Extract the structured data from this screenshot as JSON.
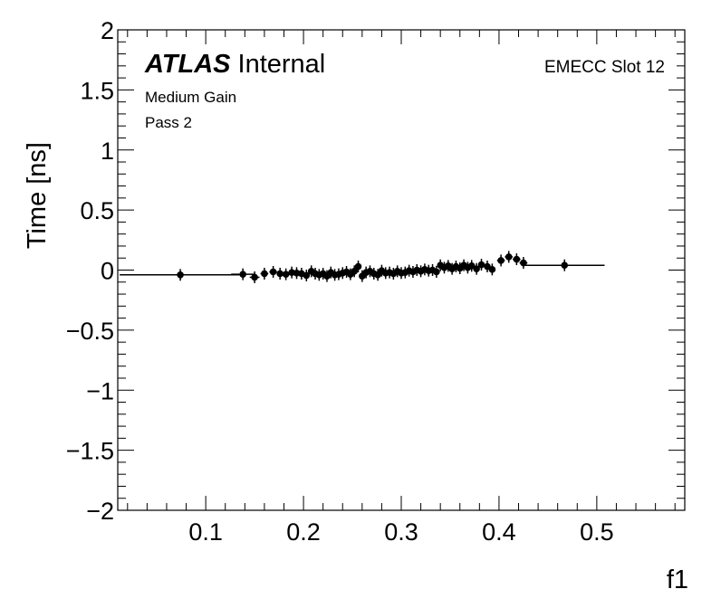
{
  "labels": {
    "atlas": "ATLAS",
    "internal": "Internal",
    "gain": "Medium Gain",
    "pass": "Pass 2",
    "slot": "EMECC Slot 12"
  },
  "chart_data": {
    "type": "scatter",
    "title": "",
    "xlabel": "f1",
    "ylabel": "Time [ns]",
    "xlim": [
      0.01,
      0.59
    ],
    "ylim": [
      -2,
      2
    ],
    "grid": false,
    "x_ticks": [
      0.1,
      0.2,
      0.3,
      0.4,
      0.5
    ],
    "x_tick_labels": [
      "0.1",
      "0.2",
      "0.3",
      "0.4",
      "0.5"
    ],
    "y_ticks": [
      -2,
      -1.5,
      -1,
      -0.5,
      0,
      0.5,
      1,
      1.5,
      2
    ],
    "y_tick_labels": [
      "−2",
      "−1.5",
      "−1",
      "−0.5",
      "0",
      "0.5",
      "1",
      "1.5",
      "2"
    ],
    "series": [
      {
        "points": [
          {
            "x": 0.074,
            "y": -0.04,
            "xerr": 0.062,
            "yerr": 0.0
          },
          {
            "x": 0.138,
            "y": -0.035,
            "xerr": 0.012,
            "yerr": 0.0
          },
          {
            "x": 0.15,
            "y": -0.06,
            "xerr": 0.005,
            "yerr": 0.02
          },
          {
            "x": 0.16,
            "y": -0.03,
            "xerr": 0.004,
            "yerr": 0.02
          },
          {
            "x": 0.169,
            "y": -0.015,
            "xerr": 0.004,
            "yerr": 0.02
          },
          {
            "x": 0.176,
            "y": -0.03,
            "xerr": 0.003,
            "yerr": 0.02
          },
          {
            "x": 0.182,
            "y": -0.035,
            "xerr": 0.003,
            "yerr": 0.02
          },
          {
            "x": 0.188,
            "y": -0.02,
            "xerr": 0.003,
            "yerr": 0.02
          },
          {
            "x": 0.193,
            "y": -0.025,
            "xerr": 0.002,
            "yerr": 0.02
          },
          {
            "x": 0.198,
            "y": -0.03,
            "xerr": 0.002,
            "yerr": 0.02
          },
          {
            "x": 0.203,
            "y": -0.045,
            "xerr": 0.002,
            "yerr": 0.02
          },
          {
            "x": 0.208,
            "y": -0.01,
            "xerr": 0.002,
            "yerr": 0.02
          },
          {
            "x": 0.212,
            "y": -0.03,
            "xerr": 0.002,
            "yerr": 0.02
          },
          {
            "x": 0.216,
            "y": -0.04,
            "xerr": 0.002,
            "yerr": 0.02
          },
          {
            "x": 0.22,
            "y": -0.03,
            "xerr": 0.002,
            "yerr": 0.02
          },
          {
            "x": 0.224,
            "y": -0.05,
            "xerr": 0.002,
            "yerr": 0.02
          },
          {
            "x": 0.228,
            "y": -0.02,
            "xerr": 0.002,
            "yerr": 0.02
          },
          {
            "x": 0.232,
            "y": -0.04,
            "xerr": 0.002,
            "yerr": 0.02
          },
          {
            "x": 0.236,
            "y": -0.035,
            "xerr": 0.002,
            "yerr": 0.02
          },
          {
            "x": 0.24,
            "y": -0.025,
            "xerr": 0.002,
            "yerr": 0.02
          },
          {
            "x": 0.244,
            "y": -0.015,
            "xerr": 0.002,
            "yerr": 0.02
          },
          {
            "x": 0.248,
            "y": -0.035,
            "xerr": 0.002,
            "yerr": 0.02
          },
          {
            "x": 0.252,
            "y": -0.01,
            "xerr": 0.002,
            "yerr": 0.02
          },
          {
            "x": 0.256,
            "y": 0.03,
            "xerr": 0.002,
            "yerr": 0.02
          },
          {
            "x": 0.26,
            "y": -0.05,
            "xerr": 0.002,
            "yerr": 0.02
          },
          {
            "x": 0.264,
            "y": -0.02,
            "xerr": 0.002,
            "yerr": 0.02
          },
          {
            "x": 0.268,
            "y": -0.01,
            "xerr": 0.002,
            "yerr": 0.02
          },
          {
            "x": 0.272,
            "y": -0.03,
            "xerr": 0.002,
            "yerr": 0.02
          },
          {
            "x": 0.276,
            "y": -0.04,
            "xerr": 0.002,
            "yerr": 0.02
          },
          {
            "x": 0.28,
            "y": -0.005,
            "xerr": 0.002,
            "yerr": 0.02
          },
          {
            "x": 0.284,
            "y": -0.025,
            "xerr": 0.002,
            "yerr": 0.02
          },
          {
            "x": 0.288,
            "y": -0.02,
            "xerr": 0.002,
            "yerr": 0.02
          },
          {
            "x": 0.292,
            "y": -0.03,
            "xerr": 0.002,
            "yerr": 0.02
          },
          {
            "x": 0.296,
            "y": -0.01,
            "xerr": 0.002,
            "yerr": 0.02
          },
          {
            "x": 0.3,
            "y": -0.025,
            "xerr": 0.002,
            "yerr": 0.02
          },
          {
            "x": 0.304,
            "y": -0.02,
            "xerr": 0.002,
            "yerr": 0.02
          },
          {
            "x": 0.308,
            "y": -0.005,
            "xerr": 0.002,
            "yerr": 0.02
          },
          {
            "x": 0.312,
            "y": -0.015,
            "xerr": 0.002,
            "yerr": 0.02
          },
          {
            "x": 0.316,
            "y": 0.0,
            "xerr": 0.002,
            "yerr": 0.02
          },
          {
            "x": 0.32,
            "y": -0.01,
            "xerr": 0.002,
            "yerr": 0.02
          },
          {
            "x": 0.324,
            "y": 0.005,
            "xerr": 0.002,
            "yerr": 0.02
          },
          {
            "x": 0.328,
            "y": -0.005,
            "xerr": 0.002,
            "yerr": 0.02
          },
          {
            "x": 0.332,
            "y": 0.0,
            "xerr": 0.002,
            "yerr": 0.02
          },
          {
            "x": 0.336,
            "y": -0.015,
            "xerr": 0.002,
            "yerr": 0.02
          },
          {
            "x": 0.34,
            "y": 0.04,
            "xerr": 0.002,
            "yerr": 0.02
          },
          {
            "x": 0.344,
            "y": 0.02,
            "xerr": 0.002,
            "yerr": 0.02
          },
          {
            "x": 0.348,
            "y": 0.035,
            "xerr": 0.002,
            "yerr": 0.02
          },
          {
            "x": 0.352,
            "y": 0.01,
            "xerr": 0.002,
            "yerr": 0.02
          },
          {
            "x": 0.356,
            "y": 0.03,
            "xerr": 0.002,
            "yerr": 0.02
          },
          {
            "x": 0.36,
            "y": 0.015,
            "xerr": 0.002,
            "yerr": 0.02
          },
          {
            "x": 0.364,
            "y": 0.04,
            "xerr": 0.002,
            "yerr": 0.02
          },
          {
            "x": 0.368,
            "y": 0.02,
            "xerr": 0.002,
            "yerr": 0.02
          },
          {
            "x": 0.372,
            "y": 0.035,
            "xerr": 0.002,
            "yerr": 0.02
          },
          {
            "x": 0.377,
            "y": 0.01,
            "xerr": 0.002,
            "yerr": 0.02
          },
          {
            "x": 0.382,
            "y": 0.045,
            "xerr": 0.002,
            "yerr": 0.02
          },
          {
            "x": 0.388,
            "y": 0.03,
            "xerr": 0.003,
            "yerr": 0.02
          },
          {
            "x": 0.393,
            "y": 0.005,
            "xerr": 0.003,
            "yerr": 0.02
          },
          {
            "x": 0.402,
            "y": 0.08,
            "xerr": 0.004,
            "yerr": 0.02
          },
          {
            "x": 0.41,
            "y": 0.11,
            "xerr": 0.004,
            "yerr": 0.02
          },
          {
            "x": 0.418,
            "y": 0.09,
            "xerr": 0.004,
            "yerr": 0.02
          },
          {
            "x": 0.425,
            "y": 0.06,
            "xerr": 0.004,
            "yerr": 0.02
          },
          {
            "x": 0.467,
            "y": 0.04,
            "xerr": 0.041,
            "yerr": 0.0
          }
        ]
      }
    ]
  }
}
